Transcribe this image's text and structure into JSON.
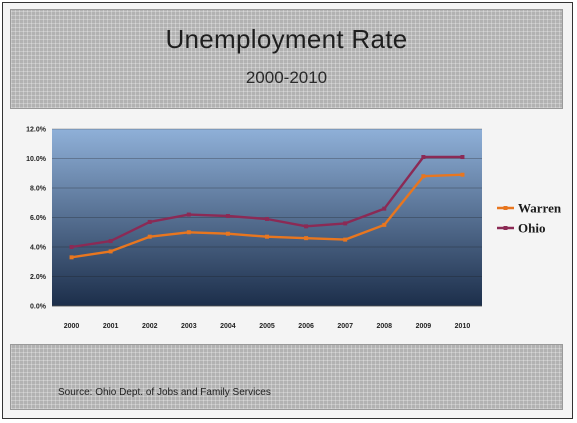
{
  "header": {
    "title": "Unemployment Rate",
    "subtitle": "2000-2010"
  },
  "footer": {
    "source": "Source: Ohio Dept. of Jobs and Family Services"
  },
  "chart_data": {
    "type": "line",
    "title": "Unemployment Rate",
    "subtitle": "2000-2010",
    "x": [
      "2000",
      "2001",
      "2002",
      "2003",
      "2004",
      "2005",
      "2006",
      "2007",
      "2008",
      "2009",
      "2010"
    ],
    "series": [
      {
        "name": "Warren",
        "color": "#e8761f",
        "values": [
          3.3,
          3.7,
          4.7,
          5.0,
          4.9,
          4.7,
          4.6,
          4.5,
          5.5,
          8.8,
          8.9
        ]
      },
      {
        "name": "Ohio",
        "color": "#8b2a55",
        "values": [
          4.0,
          4.4,
          5.7,
          6.2,
          6.1,
          5.9,
          5.4,
          5.6,
          6.6,
          10.1,
          10.1
        ]
      }
    ],
    "ylim": [
      0,
      12
    ],
    "yticks": [
      "0.0%",
      "2.0%",
      "4.0%",
      "6.0%",
      "8.0%",
      "10.0%",
      "12.0%"
    ],
    "grid": true,
    "legend": "right",
    "plot_background": [
      "#8fb0d8",
      "#1c2e4a"
    ]
  }
}
